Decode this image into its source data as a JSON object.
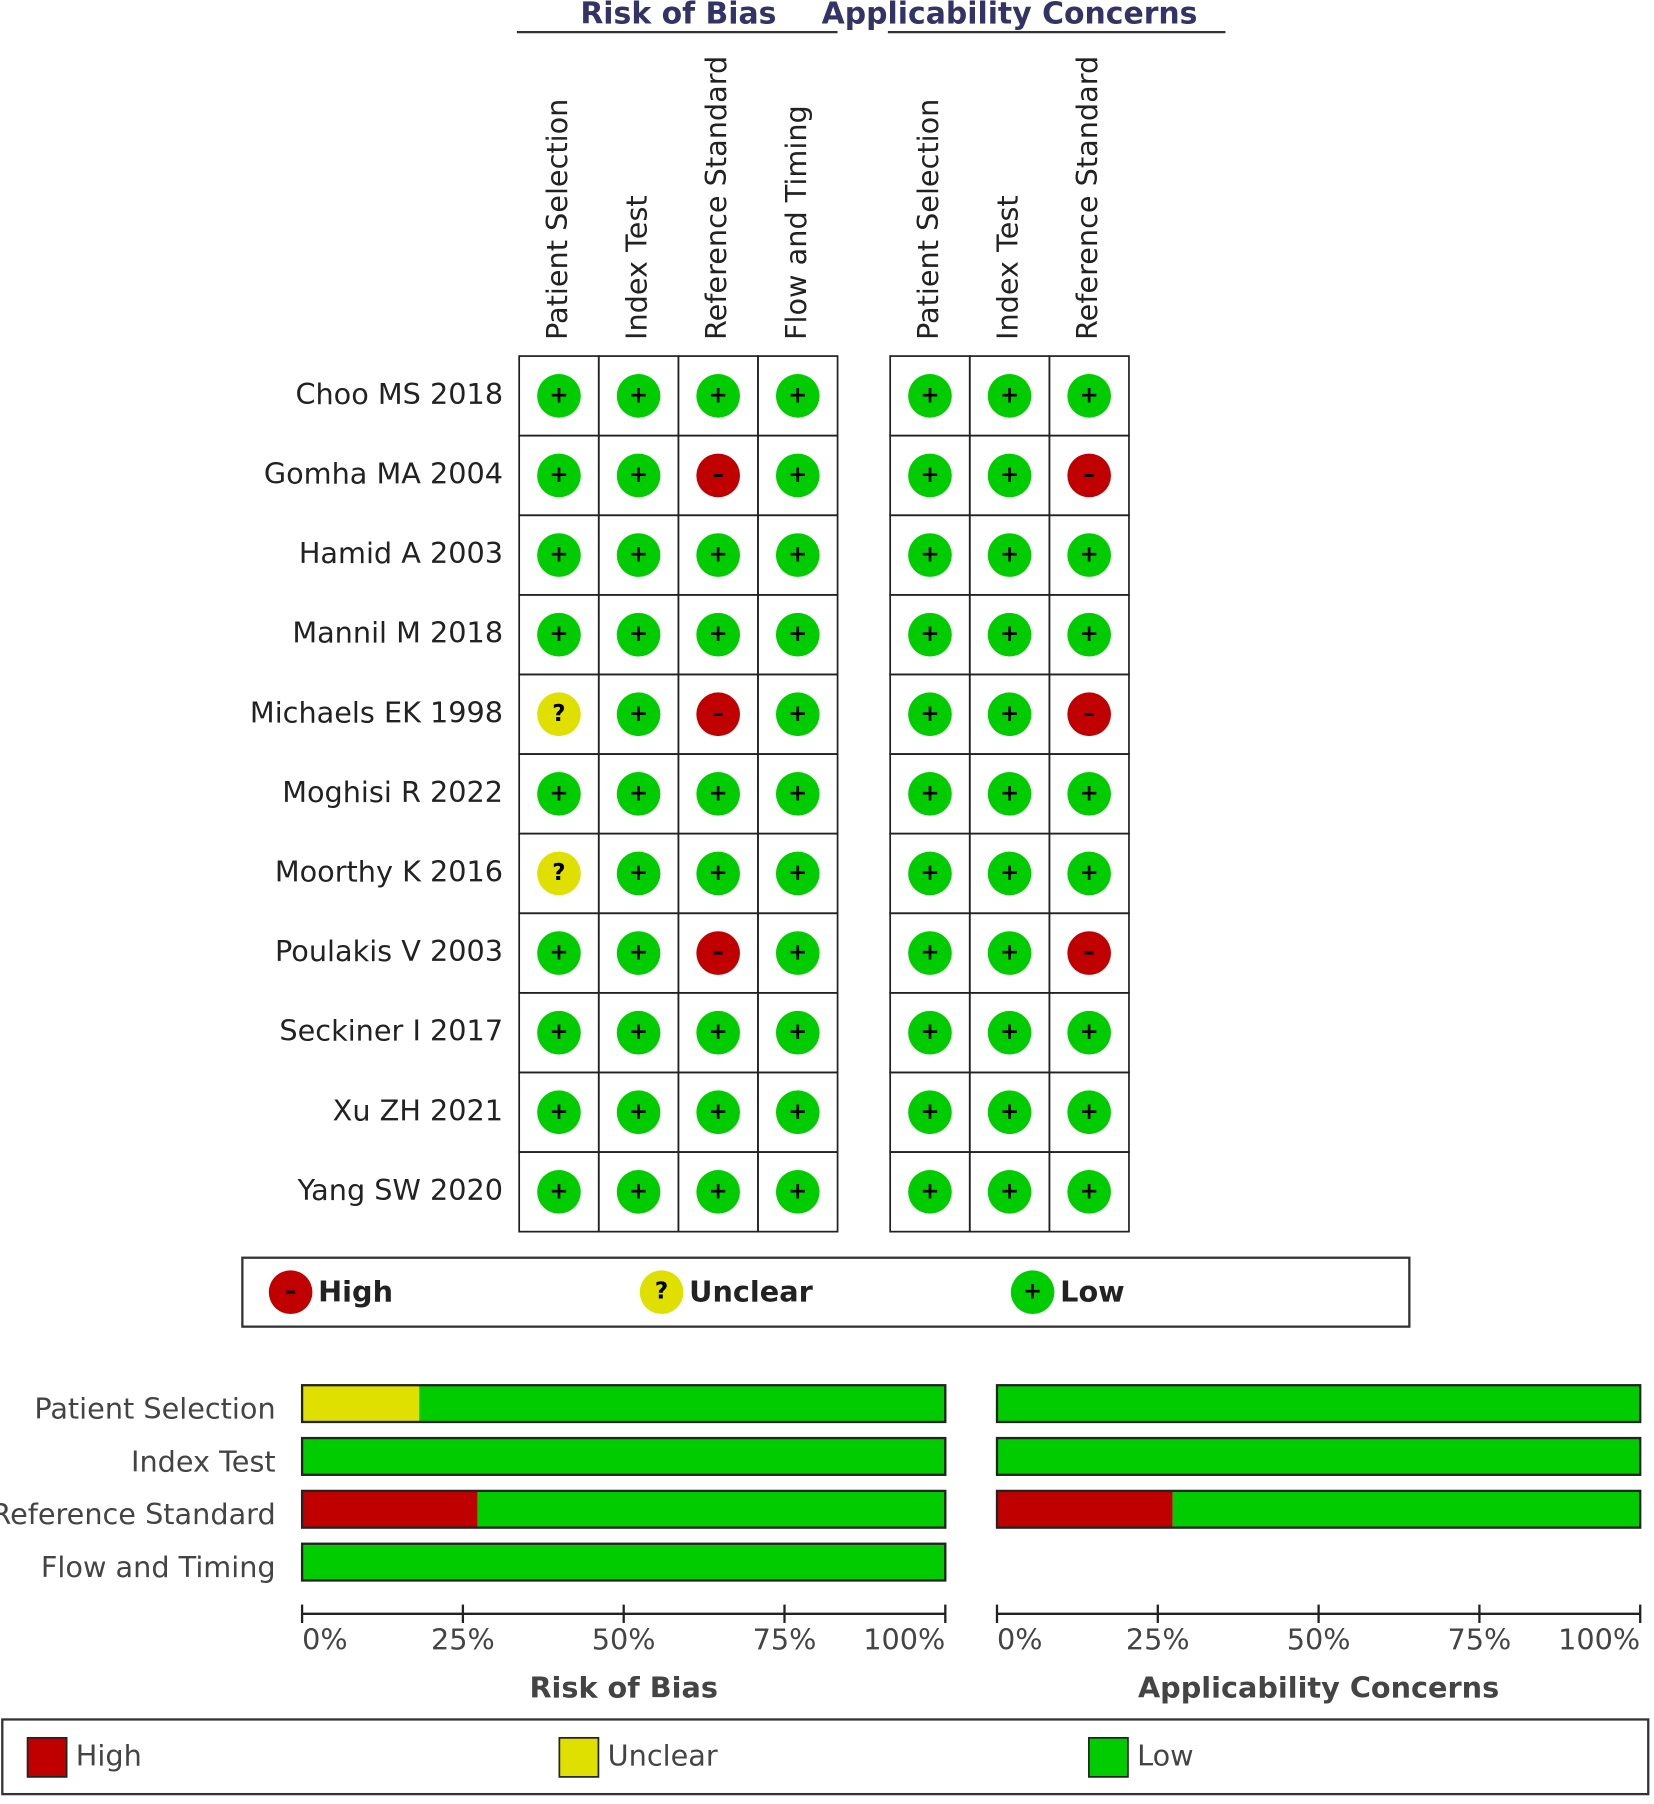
{
  "chart_data": [
    {
      "type": "traffic-light",
      "groups": [
        {
          "title": "Risk of Bias",
          "columns": [
            "Patient Selection",
            "Index Test",
            "Reference Standard",
            "Flow and Timing"
          ]
        },
        {
          "title": "Applicability Concerns",
          "columns": [
            "Patient Selection",
            "Index Test",
            "Reference Standard"
          ]
        }
      ],
      "studies": [
        "Choo MS 2018",
        "Gomha MA 2004",
        "Hamid A 2003",
        "Mannil M 2018",
        "Michaels EK 1998",
        "Moghisi R 2022",
        "Moorthy K 2016",
        "Poulakis V 2003",
        "Seckiner I 2017",
        "Xu ZH 2021",
        "Yang SW 2020"
      ],
      "cells": [
        [
          "+",
          "+",
          "+",
          "+",
          "+",
          "+",
          "+"
        ],
        [
          "+",
          "+",
          "–",
          "+",
          "+",
          "+",
          "–"
        ],
        [
          "+",
          "+",
          "+",
          "+",
          "+",
          "+",
          "+"
        ],
        [
          "+",
          "+",
          "+",
          "+",
          "+",
          "+",
          "+"
        ],
        [
          "?",
          "+",
          "–",
          "+",
          "+",
          "+",
          "–"
        ],
        [
          "+",
          "+",
          "+",
          "+",
          "+",
          "+",
          "+"
        ],
        [
          "?",
          "+",
          "+",
          "+",
          "+",
          "+",
          "+"
        ],
        [
          "+",
          "+",
          "–",
          "+",
          "+",
          "+",
          "–"
        ],
        [
          "+",
          "+",
          "+",
          "+",
          "+",
          "+",
          "+"
        ],
        [
          "+",
          "+",
          "+",
          "+",
          "+",
          "+",
          "+"
        ],
        [
          "+",
          "+",
          "+",
          "+",
          "+",
          "+",
          "+"
        ]
      ],
      "legend": [
        {
          "name": "High",
          "symbol": "–",
          "color": "#c00000"
        },
        {
          "name": "Unclear",
          "symbol": "?",
          "color": "#e0e000"
        },
        {
          "name": "Low",
          "symbol": "+",
          "color": "#00cc00"
        }
      ]
    },
    {
      "type": "bar",
      "orientation": "horizontal",
      "stacked": true,
      "categories": [
        "Patient Selection",
        "Index Test",
        "Reference Standard",
        "Flow and Timing"
      ],
      "xlabel": "Risk of Bias",
      "xlim": [
        0,
        100
      ],
      "xticks": [
        {
          "value": 0,
          "label": "0%"
        },
        {
          "value": 25,
          "label": "25%"
        },
        {
          "value": 50,
          "label": "50%"
        },
        {
          "value": 75,
          "label": "75%"
        },
        {
          "value": 100,
          "label": "100%"
        }
      ],
      "series": [
        {
          "name": "High",
          "color": "#c00000",
          "values": [
            0,
            0,
            27.3,
            0
          ]
        },
        {
          "name": "Unclear",
          "color": "#e0e000",
          "values": [
            18.2,
            0,
            0,
            0
          ]
        },
        {
          "name": "Low",
          "color": "#00cc00",
          "values": [
            81.8,
            100,
            72.7,
            100
          ]
        }
      ]
    },
    {
      "type": "bar",
      "orientation": "horizontal",
      "stacked": true,
      "xlabel": "Applicability Concerns",
      "xlim": [
        0,
        100
      ],
      "xticks": [
        {
          "value": 0,
          "label": "0%"
        },
        {
          "value": 25,
          "label": "25%"
        },
        {
          "value": 50,
          "label": "50%"
        },
        {
          "value": 75,
          "label": "75%"
        },
        {
          "value": 100,
          "label": "100%"
        }
      ],
      "series": [
        {
          "name": "High",
          "color": "#c00000",
          "values": [
            0,
            0,
            27.3
          ]
        },
        {
          "name": "Unclear",
          "color": "#e0e000",
          "values": [
            0,
            0,
            0
          ]
        },
        {
          "name": "Low",
          "color": "#00cc00",
          "values": [
            100,
            100,
            72.7
          ]
        }
      ]
    }
  ]
}
